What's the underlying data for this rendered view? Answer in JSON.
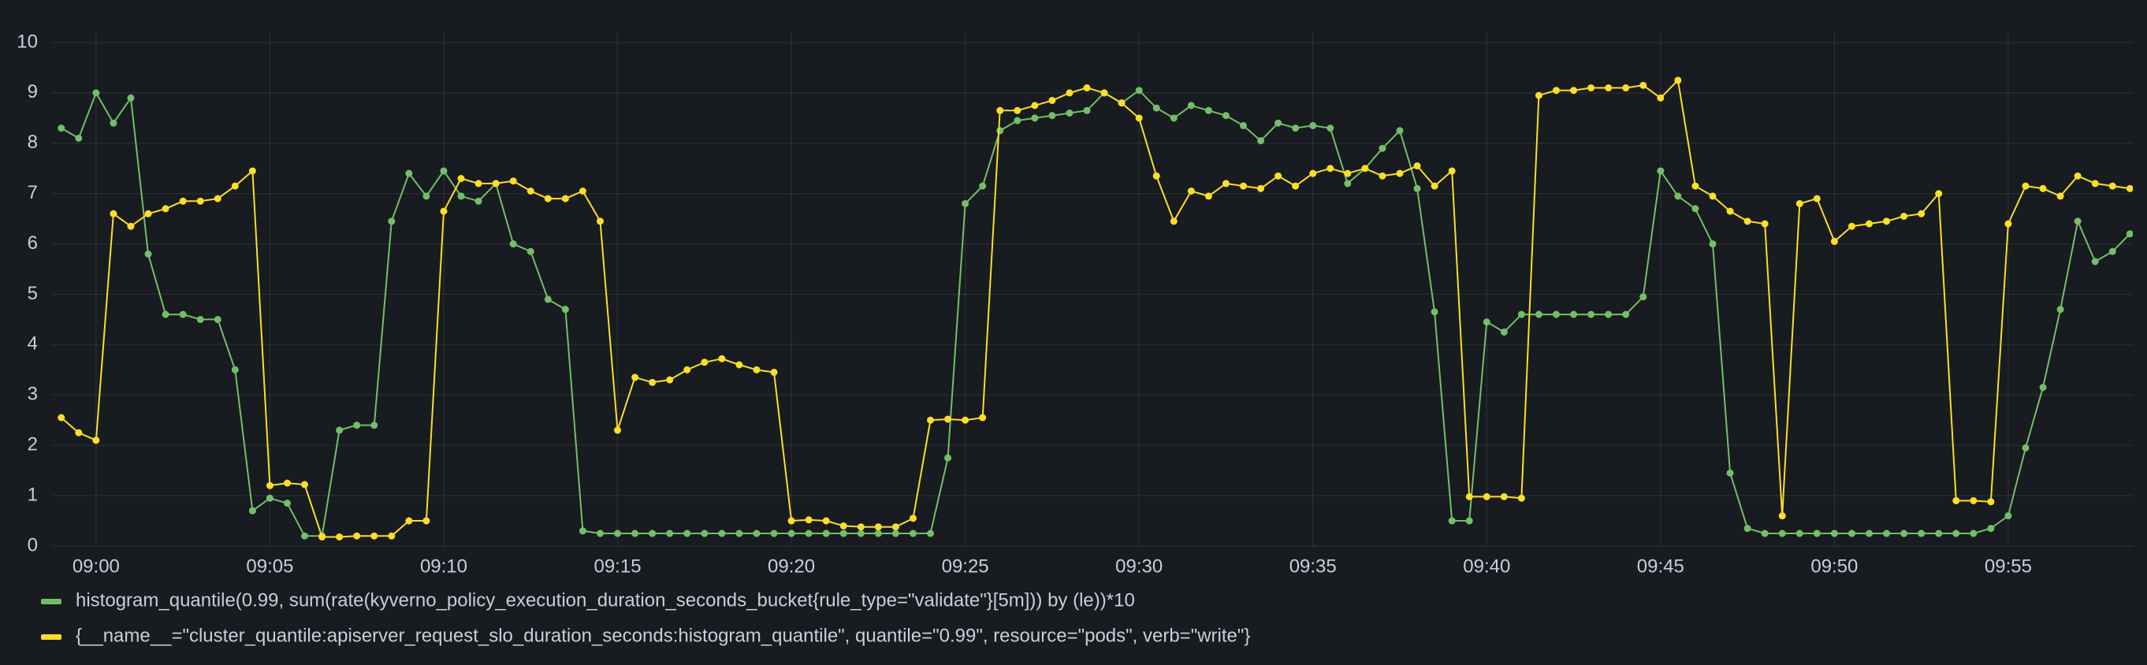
{
  "chart_data": {
    "type": "line",
    "x": [
      "08:59:00",
      "08:59:30",
      "09:00:00",
      "09:00:30",
      "09:01:00",
      "09:01:30",
      "09:02:00",
      "09:02:30",
      "09:03:00",
      "09:03:30",
      "09:04:00",
      "09:04:30",
      "09:05:00",
      "09:05:30",
      "09:06:00",
      "09:06:30",
      "09:07:00",
      "09:07:30",
      "09:08:00",
      "09:08:30",
      "09:09:00",
      "09:09:30",
      "09:10:00",
      "09:10:30",
      "09:11:00",
      "09:11:30",
      "09:12:00",
      "09:12:30",
      "09:13:00",
      "09:13:30",
      "09:14:00",
      "09:14:30",
      "09:15:00",
      "09:15:30",
      "09:16:00",
      "09:16:30",
      "09:17:00",
      "09:17:30",
      "09:18:00",
      "09:18:30",
      "09:19:00",
      "09:19:30",
      "09:20:00",
      "09:20:30",
      "09:21:00",
      "09:21:30",
      "09:22:00",
      "09:22:30",
      "09:23:00",
      "09:23:30",
      "09:24:00",
      "09:24:30",
      "09:25:00",
      "09:25:30",
      "09:26:00",
      "09:26:30",
      "09:27:00",
      "09:27:30",
      "09:28:00",
      "09:28:30",
      "09:29:00",
      "09:29:30",
      "09:30:00",
      "09:30:30",
      "09:31:00",
      "09:31:30",
      "09:32:00",
      "09:32:30",
      "09:33:00",
      "09:33:30",
      "09:34:00",
      "09:34:30",
      "09:35:00",
      "09:35:30",
      "09:36:00",
      "09:36:30",
      "09:37:00",
      "09:37:30",
      "09:38:00",
      "09:38:30",
      "09:39:00",
      "09:39:30",
      "09:40:00",
      "09:40:30",
      "09:41:00",
      "09:41:30",
      "09:42:00",
      "09:42:30",
      "09:43:00",
      "09:43:30",
      "09:44:00",
      "09:44:30",
      "09:45:00",
      "09:45:30",
      "09:46:00",
      "09:46:30",
      "09:47:00",
      "09:47:30",
      "09:48:00",
      "09:48:30",
      "09:49:00",
      "09:49:30",
      "09:50:00",
      "09:50:30",
      "09:51:00",
      "09:51:30",
      "09:52:00",
      "09:52:30",
      "09:53:00",
      "09:53:30",
      "09:54:00",
      "09:54:30",
      "09:55:00",
      "09:55:30",
      "09:56:00",
      "09:56:30",
      "09:57:00",
      "09:57:30",
      "09:58:00",
      "09:58:30"
    ],
    "series": [
      {
        "name": "histogram_quantile(0.99, sum(rate(kyverno_policy_execution_duration_seconds_bucket{rule_type=\"validate\"}[5m])) by (le))*10",
        "color": "#73bf69",
        "values": [
          8.3,
          8.1,
          9.0,
          8.4,
          8.9,
          5.8,
          4.6,
          4.6,
          4.5,
          4.5,
          3.5,
          0.7,
          0.95,
          0.85,
          0.2,
          0.2,
          2.3,
          2.4,
          2.4,
          6.45,
          7.4,
          6.95,
          7.45,
          6.95,
          6.85,
          7.2,
          6.0,
          5.85,
          4.9,
          4.7,
          0.3,
          0.25,
          0.25,
          0.25,
          0.25,
          0.25,
          0.25,
          0.25,
          0.25,
          0.25,
          0.25,
          0.25,
          0.25,
          0.25,
          0.25,
          0.25,
          0.25,
          0.25,
          0.25,
          0.25,
          0.25,
          1.75,
          6.8,
          7.15,
          8.25,
          8.45,
          8.5,
          8.55,
          8.6,
          8.65,
          9.0,
          8.8,
          9.05,
          8.7,
          8.5,
          8.75,
          8.65,
          8.55,
          8.35,
          8.05,
          8.4,
          8.3,
          8.35,
          8.3,
          7.2,
          7.5,
          7.9,
          8.25,
          7.1,
          4.65,
          0.5,
          0.5,
          4.45,
          4.25,
          4.6,
          4.6,
          4.6,
          4.6,
          4.6,
          4.6,
          4.6,
          4.95,
          7.45,
          6.95,
          6.7,
          6.0,
          1.45,
          0.35,
          0.25,
          0.25,
          0.25,
          0.25,
          0.25,
          0.25,
          0.25,
          0.25,
          0.25,
          0.25,
          0.25,
          0.25,
          0.25,
          0.35,
          0.6,
          1.95,
          3.15,
          4.7,
          6.45,
          5.65,
          5.85,
          6.2
        ]
      },
      {
        "name": "{__name__=\"cluster_quantile:apiserver_request_slo_duration_seconds:histogram_quantile\", quantile=\"0.99\", resource=\"pods\", verb=\"write\"}",
        "color": "#fade2a",
        "values": [
          2.55,
          2.25,
          2.1,
          6.6,
          6.35,
          6.6,
          6.7,
          6.85,
          6.85,
          6.9,
          7.15,
          7.45,
          1.2,
          1.25,
          1.22,
          0.18,
          0.18,
          0.2,
          0.2,
          0.2,
          0.5,
          0.5,
          6.65,
          7.3,
          7.2,
          7.2,
          7.25,
          7.05,
          6.9,
          6.9,
          7.05,
          6.45,
          2.3,
          3.35,
          3.25,
          3.3,
          3.5,
          3.65,
          3.72,
          3.6,
          3.5,
          3.45,
          0.5,
          0.52,
          0.5,
          0.4,
          0.38,
          0.38,
          0.38,
          0.55,
          2.5,
          2.52,
          2.5,
          2.55,
          8.65,
          8.65,
          8.75,
          8.85,
          9.0,
          9.1,
          9.0,
          8.8,
          8.5,
          7.35,
          6.45,
          7.05,
          6.95,
          7.2,
          7.15,
          7.1,
          7.35,
          7.15,
          7.4,
          7.5,
          7.4,
          7.5,
          7.35,
          7.4,
          7.55,
          7.15,
          7.45,
          0.98,
          0.98,
          0.98,
          0.95,
          8.95,
          9.05,
          9.05,
          9.1,
          9.1,
          9.1,
          9.15,
          8.9,
          9.25,
          7.15,
          6.95,
          6.65,
          6.45,
          6.4,
          0.6,
          6.8,
          6.9,
          6.05,
          6.35,
          6.4,
          6.45,
          6.55,
          6.6,
          7.0,
          0.9,
          0.9,
          0.88,
          6.4,
          7.15,
          7.1,
          6.95,
          7.35,
          7.2,
          7.15,
          7.1
        ]
      }
    ],
    "xlim": [
      "08:58:44",
      "09:58:35"
    ],
    "xticks": [
      "09:00",
      "09:05",
      "09:10",
      "09:15",
      "09:20",
      "09:25",
      "09:30",
      "09:35",
      "09:40",
      "09:45",
      "09:50",
      "09:55"
    ],
    "ylim": [
      0,
      10
    ],
    "yticks": [
      0,
      1,
      2,
      3,
      4,
      5,
      6,
      7,
      8,
      9,
      10
    ],
    "grid": true
  }
}
